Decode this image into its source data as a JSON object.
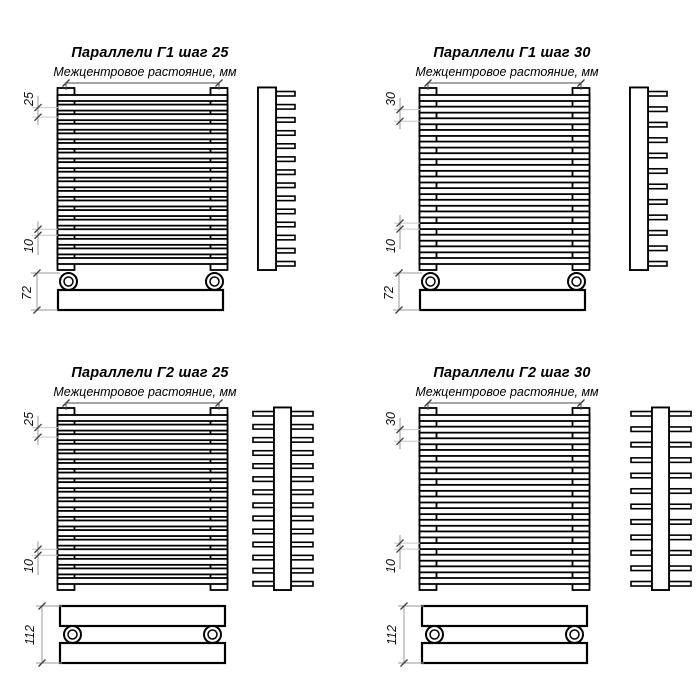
{
  "drawing_sheet": {
    "description_labels": {
      "subtitle": "Межцентровое растояние, мм"
    },
    "diagrams": [
      {
        "title": "Параллели Г1 шаг 25",
        "subtitle": "Межцентровое растояние, мм",
        "step_label": "25",
        "tube_height_label": "10",
        "collector_height_label": "72",
        "tube_count": 18,
        "side_tube_count": 14,
        "tube_rows": "one-sided",
        "collector": "single"
      },
      {
        "title": "Параллели Г1 шаг 30",
        "subtitle": "Межцентровое растояние, мм",
        "step_label": "30",
        "tube_height_label": "10",
        "collector_height_label": "72",
        "tube_count": 15,
        "side_tube_count": 12,
        "tube_rows": "one-sided",
        "collector": "single"
      },
      {
        "title": "Параллели Г2 шаг 25",
        "subtitle": "Межцентровое растояние, мм",
        "step_label": "25",
        "tube_height_label": "10",
        "collector_height_label": "112",
        "tube_count": 18,
        "side_tube_count": 14,
        "tube_rows": "two-sided",
        "collector": "double"
      },
      {
        "title": "Параллели Г2 шаг 30",
        "subtitle": "Межцентровое растояние, мм",
        "step_label": "30",
        "tube_height_label": "10",
        "collector_height_label": "112",
        "tube_count": 15,
        "side_tube_count": 12,
        "tube_rows": "two-sided",
        "collector": "double"
      }
    ],
    "colors": {
      "line": "#000000",
      "dim_line": "#9a9a9a",
      "extension_line": "#c6c6c6",
      "tick": "#3d3d3d",
      "top_dim_line": "#4a4a4a",
      "background": "#ffffff"
    }
  }
}
